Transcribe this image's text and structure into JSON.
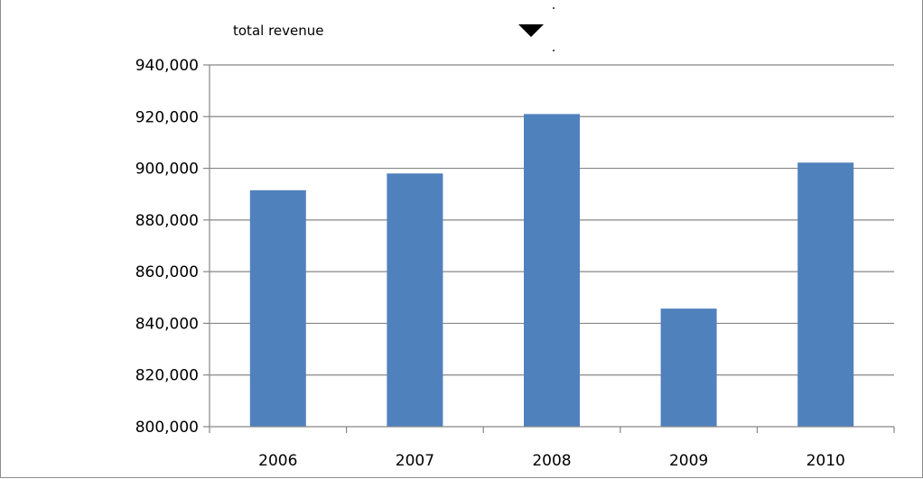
{
  "filter": {
    "label": "total revenue",
    "dropdown_icon": "caret-down-icon"
  },
  "colors": {
    "bar": "#4f81bd",
    "grid": "#868686",
    "axis": "#868686"
  },
  "chart_data": {
    "type": "bar",
    "categories": [
      "2006",
      "2007",
      "2008",
      "2009",
      "2010"
    ],
    "values": [
      891500,
      898000,
      921000,
      845700,
      902200
    ],
    "ylim": [
      800000,
      940000
    ],
    "yticks": [
      800000,
      820000,
      840000,
      860000,
      880000,
      900000,
      920000,
      940000
    ],
    "ytick_labels": [
      "800,000",
      "820,000",
      "840,000",
      "860,000",
      "880,000",
      "900,000",
      "920,000",
      "940,000"
    ],
    "grid": true,
    "legend": "none"
  }
}
